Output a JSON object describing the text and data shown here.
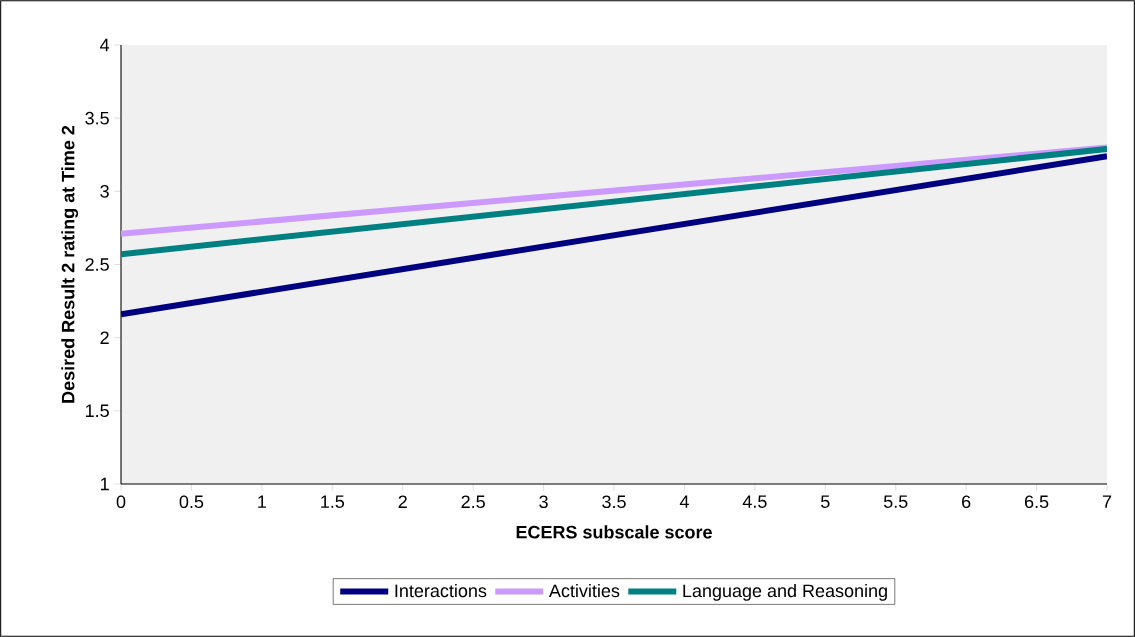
{
  "chart_data": {
    "type": "line",
    "xlabel": "ECERS subscale score",
    "ylabel": "Desired Result 2 rating at Time 2",
    "x": [
      0,
      7
    ],
    "series": [
      {
        "name": "Interactions",
        "color": "#000080",
        "values": [
          2.16,
          3.24
        ]
      },
      {
        "name": "Activities",
        "color": "#cc99ff",
        "values": [
          2.71,
          3.3
        ]
      },
      {
        "name": "Language and Reasoning",
        "color": "#008080",
        "values": [
          2.57,
          3.29
        ]
      }
    ],
    "xlim": [
      0,
      7
    ],
    "xticks": [
      0,
      0.5,
      1,
      1.5,
      2,
      2.5,
      3,
      3.5,
      4,
      4.5,
      5,
      5.5,
      6,
      6.5,
      7
    ],
    "ylim": [
      1,
      4
    ],
    "yticks": [
      1,
      1.5,
      2,
      2.5,
      3,
      3.5,
      4
    ],
    "grid": false,
    "legend": "bottom",
    "marker": "none",
    "line_style": "solid"
  }
}
